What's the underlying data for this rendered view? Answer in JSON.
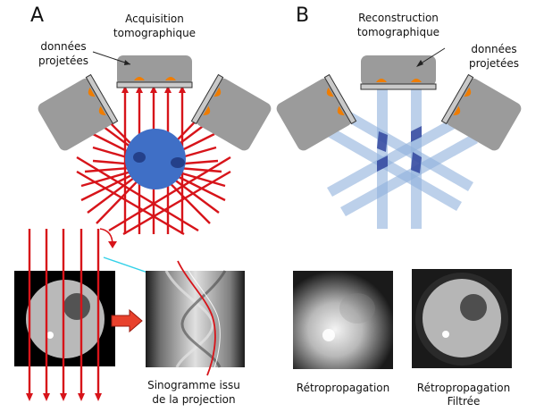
{
  "panel_a": {
    "letter": "A",
    "title_line1": "Acquisition",
    "title_line2": "tomographique",
    "detector_label_line1": "données",
    "detector_label_line2": "projetées",
    "sinogram_caption_line1": "Sinogramme issu",
    "sinogram_caption_line2": "de la projection"
  },
  "panel_b": {
    "letter": "B",
    "title_line1": "Reconstruction",
    "title_line2": "tomographique",
    "detector_label_line1": "données",
    "detector_label_line2": "projetées",
    "backprojection_label": "Rétropropagation",
    "filtered_label_line1": "Rétropropagation",
    "filtered_label_line2": "Filtrée"
  },
  "colors": {
    "rays": "#d7141a",
    "detector_body": "#9b9b9b",
    "detector_face": "#c9c9c9",
    "source_blobs": "#f07d00",
    "object_blue": "#3f6fc6",
    "backprojection_beam": "#8fb0dc",
    "beam_overlap": "#2b3f9a",
    "cyan_pointer": "#33d1e8"
  }
}
